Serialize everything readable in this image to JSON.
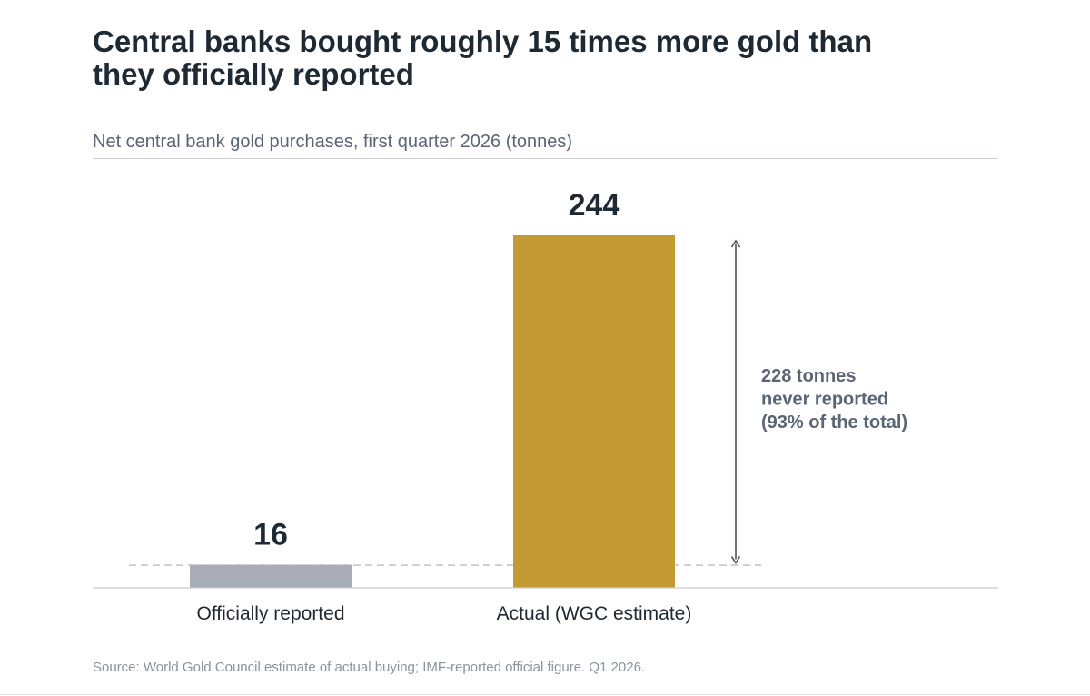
{
  "title": "Central banks bought roughly 15 times more gold than they officially reported",
  "source": "Source: World Gold Council estimate of actual buying; IMF-reported official figure.  Q1 2026.",
  "colors": {
    "official": "#a9adb5",
    "actual": "#c49a35",
    "text_dark": "#1f2933",
    "text_muted": "#5b6573",
    "annotation": "#4a5462"
  },
  "chart_data": {
    "type": "bar",
    "title": "",
    "subtitle": "Net central bank gold purchases, first quarter 2026  (tonnes)",
    "categories": [
      "Officially reported",
      "Actual (WGC estimate)"
    ],
    "values": [
      16,
      244
    ],
    "value_labels": [
      "16",
      "244"
    ],
    "ylim": [
      0,
      244
    ],
    "grid": false,
    "reference_line": {
      "value": 16,
      "style": "dashed"
    },
    "annotation": {
      "from": 16,
      "to": 244,
      "lines": [
        "228 tonnes",
        "never reported",
        "(93% of the total)"
      ]
    }
  }
}
